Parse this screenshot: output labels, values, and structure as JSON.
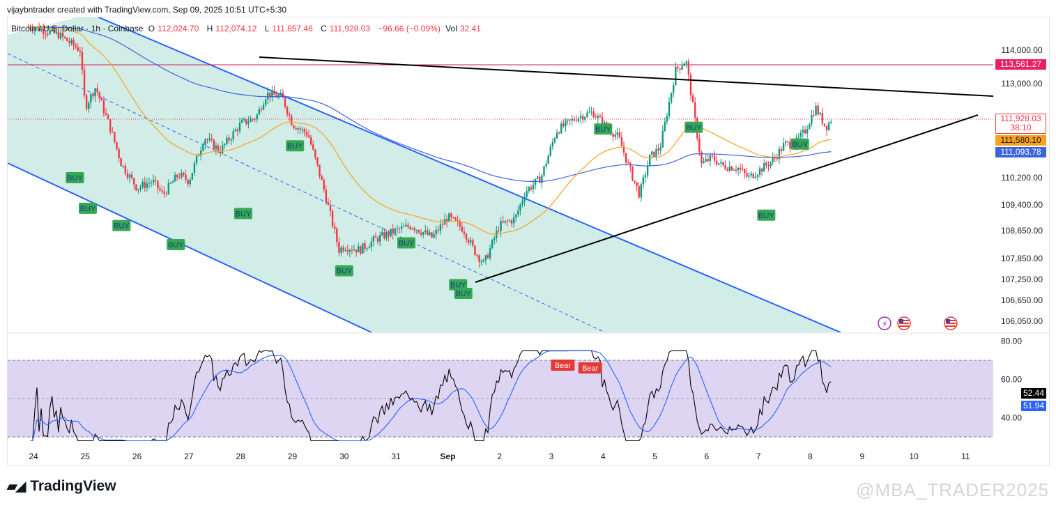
{
  "header": {
    "created_line": "vijaybntrader created with TradingView.com, Sep 09, 2025 10:51 UTC+5:30"
  },
  "symbol": {
    "name": "Bitcoin / U.S. Dollar · 1h · Coinbase",
    "o_label": "O",
    "o_value": "112,024.70",
    "h_label": "H",
    "h_value": "112,074.12",
    "l_label": "L",
    "l_value": "111,857.46",
    "c_label": "C",
    "c_value": "111,928.03",
    "change": "−96.66 (−0.09%)",
    "vol_label": "Vol",
    "vol_value": "32.41"
  },
  "price_labels": {
    "resistance": "113,561.27",
    "last": "111,928.03",
    "countdown": "38:10",
    "ema_fast": "111,580.10",
    "ema_slow": "111,093.78"
  },
  "rsi_labels": {
    "rsi": "52.44",
    "rsi_ma": "51.94"
  },
  "colors": {
    "up": "#089981",
    "down": "#f23645",
    "channel": "#2962ff",
    "ema_fast": "#f7a21b",
    "ema_slow": "#3d63dd",
    "rsi_fill": "#d8cef0",
    "buy": "#34a853",
    "bear": "#e53935"
  },
  "signals": {
    "buy_label": "BUY",
    "bear_label": "Bear"
  },
  "footer": {
    "brand": "TradingView",
    "watermark": "@MBA_TRADER2025"
  },
  "chart_data": [
    {
      "type": "candlestick",
      "title": "Bitcoin / U.S. Dollar · 1h · Coinbase",
      "x_ticks": [
        "24",
        "25",
        "26",
        "27",
        "28",
        "29",
        "30",
        "31",
        "Sep",
        "2",
        "3",
        "4",
        "5",
        "6",
        "7",
        "8",
        "9",
        "10",
        "11"
      ],
      "y_ticks": [
        "114,000.00",
        "113,000.00",
        "110,200.00",
        "109,400.00",
        "108,650.00",
        "107,850.00",
        "107,250.00",
        "106,650.00",
        "106,050.00"
      ],
      "ylim": [
        105850,
        114800
      ],
      "series": [
        {
          "name": "price (approx. close path)",
          "x": [
            24.0,
            24.5,
            24.9,
            25.0,
            25.2,
            25.5,
            25.7,
            26.0,
            26.3,
            26.5,
            26.8,
            27.0,
            27.3,
            27.6,
            28.0,
            28.3,
            28.5,
            28.8,
            29.0,
            29.3,
            29.6,
            29.9,
            30.0,
            30.3,
            30.6,
            31.0,
            31.3,
            31.7,
            32.0,
            32.3,
            32.5,
            32.7,
            33.0,
            33.3,
            33.5,
            33.8,
            34.1,
            34.5,
            34.8,
            35.0,
            35.3,
            35.5,
            35.7,
            35.9,
            36.1,
            36.4,
            36.6,
            36.9,
            37.1,
            37.3,
            37.6,
            37.8,
            38.0,
            38.3,
            38.5,
            38.7,
            38.9,
            39.1,
            39.3,
            39.4
          ],
          "y": [
            114700,
            114450,
            114000,
            112300,
            112900,
            111600,
            110600,
            109900,
            110100,
            109700,
            110300,
            110100,
            111400,
            111000,
            111800,
            112000,
            112700,
            112600,
            111800,
            111500,
            109900,
            108100,
            108200,
            108100,
            108400,
            108650,
            108800,
            108450,
            109050,
            108700,
            108100,
            107700,
            108800,
            109000,
            109800,
            110200,
            111600,
            112000,
            112150,
            111800,
            111400,
            110500,
            109700,
            110800,
            111100,
            113400,
            113700,
            110600,
            110800,
            110550,
            110500,
            110200,
            110400,
            110750,
            111200,
            111200,
            111600,
            112300,
            111700,
            111928
          ]
        },
        {
          "name": "EMA fast",
          "values_label": "111,580.10"
        },
        {
          "name": "EMA slow",
          "values_label": "111,093.78"
        }
      ],
      "annotations": [
        "Descending channel (blue, shaded)",
        "Descending resistance line (black)",
        "Ascending support line (black)",
        "Horizontal level 113,561.27",
        "BUY markers"
      ]
    },
    {
      "type": "line",
      "x_ticks": [
        "24",
        "25",
        "26",
        "27",
        "28",
        "29",
        "30",
        "31",
        "Sep",
        "2",
        "3",
        "4",
        "5",
        "6",
        "7",
        "8",
        "9",
        "10",
        "11"
      ],
      "y_ticks": [
        "80.00",
        "60.00",
        "40.00"
      ],
      "ylim": [
        30,
        80
      ],
      "bands": [
        30,
        70
      ],
      "series": [
        {
          "name": "RSI",
          "last": 52.44
        },
        {
          "name": "RSI MA",
          "last": 51.94
        }
      ]
    }
  ]
}
